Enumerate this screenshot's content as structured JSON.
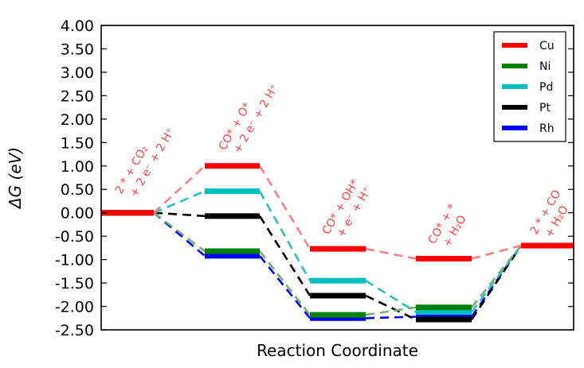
{
  "chart_data": {
    "type": "line",
    "xlabel": "Reaction Coordinate",
    "ylabel": "ΔG (eV)",
    "ylim": [
      -2.5,
      4.0
    ],
    "yticks": [
      "4.00",
      "3.50",
      "3.00",
      "2.50",
      "2.00",
      "1.50",
      "1.00",
      "0.50",
      "0.00",
      "-0.50",
      "-1.00",
      "-1.50",
      "-2.00",
      "-2.50"
    ],
    "states": [
      {
        "line1": "2 * + CO₂",
        "line2": "+ 2 e⁻ + 2 H⁺"
      },
      {
        "line1": "CO* + O*",
        "line2": "+ 2 e⁻ + 2 H⁺"
      },
      {
        "line1": "CO* + OH*",
        "line2": "+ e⁻ + H⁺"
      },
      {
        "line1": "CO* + *",
        "line2": "+ H₂O"
      },
      {
        "line1": "2 * + CO",
        "line2": "+ H₂O"
      }
    ],
    "series": [
      {
        "name": "Cu",
        "color": "#ff0000",
        "dash_color": "#ff8080",
        "values": [
          0.0,
          1.0,
          -0.77,
          -0.98,
          -0.7
        ]
      },
      {
        "name": "Ni",
        "color": "#008000",
        "dash_color": "#70b070",
        "values": [
          0.0,
          -0.82,
          -2.18,
          -2.02,
          -0.7
        ]
      },
      {
        "name": "Pd",
        "color": "#00bfbf",
        "dash_color": "#2cc0c0",
        "values": [
          0.0,
          0.46,
          -1.45,
          -2.12,
          -0.7
        ]
      },
      {
        "name": "Pt",
        "color": "#000000",
        "dash_color": "#000000",
        "values": [
          0.0,
          -0.07,
          -1.77,
          -2.28,
          -0.7
        ]
      },
      {
        "name": "Rh",
        "color": "#0000ff",
        "dash_color": "#0000ff",
        "values": [
          0.0,
          -0.92,
          -2.25,
          -2.22,
          -0.7
        ]
      }
    ],
    "legend_position": "top-right",
    "grid": false
  }
}
